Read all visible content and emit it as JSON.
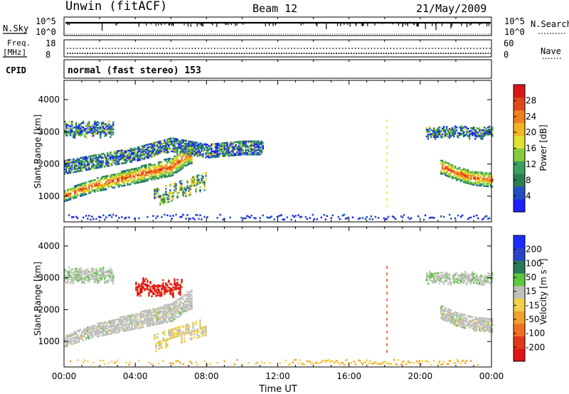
{
  "header": {
    "station": "Unwin (fitACF)",
    "beam": "Beam 12",
    "date": "21/May/2009"
  },
  "panels": {
    "nsky_label": "N.Sky",
    "nsearch_label": "N.Search",
    "nsky_ticks": [
      "10^5",
      "10^0"
    ],
    "freq_label_top": "Freq.",
    "freq_label_bottom": "[MHz]",
    "freq_ticks": [
      "18",
      "8"
    ],
    "nave_label": "Nave",
    "nave_ticks": [
      "60",
      "0"
    ],
    "cpid_label": "CPID",
    "cpid_text": "normal (fast stereo) 153"
  },
  "colors": {
    "power_scale": [
      "#2020ff",
      "#2050c0",
      "#2e7d52",
      "#3aa060",
      "#86cc3c",
      "#e0e030",
      "#f2b424",
      "#f08020",
      "#e04a18",
      "#d81818"
    ],
    "velocity_scale": [
      "#1c2cff",
      "#2a44c8",
      "#2a7a58",
      "#5cc83c",
      "#c0c0bc",
      "#f2d048",
      "#f2a030",
      "#f07020",
      "#e03818",
      "#e01414"
    ]
  },
  "chart_data": [
    {
      "type": "heatmap",
      "title": "",
      "xlabel": "Time UT",
      "ylabel": "Slant Range [km]",
      "xlim": [
        0,
        24
      ],
      "ylim": [
        200,
        4600
      ],
      "x_ticks": [
        "00:00",
        "04:00",
        "08:00",
        "12:00",
        "16:00",
        "20:00",
        "00:00"
      ],
      "y_ticks": [
        1000,
        2000,
        3000,
        4000
      ],
      "colorbar": {
        "label": "Power [dB]",
        "ticks": [
          4,
          8,
          12,
          16,
          20,
          24,
          28
        ],
        "range": [
          0,
          32
        ]
      },
      "regions": [
        {
          "name": "band_main",
          "t": [
            0.0,
            1.5,
            3.0,
            4.5,
            6.0,
            7.0
          ],
          "r": [
            1000,
            1300,
            1500,
            1700,
            1900,
            2300
          ],
          "value": 24
        },
        {
          "name": "band_evening",
          "t": [
            21.2,
            22.0,
            23.0,
            24.0
          ],
          "r": [
            1900,
            1700,
            1550,
            1500
          ],
          "value": 22
        },
        {
          "name": "upper_arc",
          "t": [
            0.0,
            2.0,
            4.0,
            6.0,
            8.0,
            10.0,
            11.0
          ],
          "r": [
            1700,
            1900,
            2100,
            2400,
            2200,
            2300,
            2300
          ],
          "value": 8
        },
        {
          "name": "low_layer",
          "t": [
            5.0,
            7.5
          ],
          "r": [
            850,
            1100
          ],
          "value": 16
        },
        {
          "name": "ground_noise",
          "t": [
            0.0,
            24.0
          ],
          "r": [
            300,
            300
          ],
          "value": 4
        }
      ]
    },
    {
      "type": "heatmap",
      "title": "",
      "xlabel": "Time UT",
      "ylabel": "Slant Range [km]",
      "xlim": [
        0,
        24
      ],
      "ylim": [
        200,
        4600
      ],
      "x_ticks": [
        "00:00",
        "04:00",
        "08:00",
        "12:00",
        "16:00",
        "20:00",
        "00:00"
      ],
      "y_ticks": [
        1000,
        2000,
        3000,
        4000
      ],
      "colorbar": {
        "label": "Velocity [m s⁻¹]",
        "ticks": [
          200,
          100,
          50,
          15,
          -15,
          -50,
          -100,
          -200
        ]
      },
      "regions": [
        {
          "name": "band_main",
          "t": [
            0.0,
            1.5,
            3.0,
            4.5,
            6.0,
            7.0
          ],
          "r": [
            1000,
            1300,
            1500,
            1700,
            1900,
            2300
          ],
          "value": 0
        },
        {
          "name": "band_evening",
          "t": [
            21.2,
            22.0,
            23.0,
            24.0
          ],
          "r": [
            1900,
            1700,
            1550,
            1500
          ],
          "value": 0
        },
        {
          "name": "red_patch",
          "t": [
            4.0,
            6.5
          ],
          "r": [
            2500,
            2900
          ],
          "value": -150
        },
        {
          "name": "low_layer",
          "t": [
            5.0,
            8.0
          ],
          "r": [
            900,
            1400
          ],
          "value": -50
        },
        {
          "name": "ground_scatter",
          "t": [
            13.0,
            22.0
          ],
          "r": [
            300,
            300
          ],
          "value": -40
        }
      ]
    }
  ]
}
